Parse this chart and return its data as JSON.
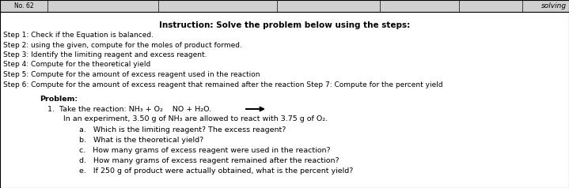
{
  "bg_color": "#e8e8e8",
  "box_color": "#ffffff",
  "border_color": "#000000",
  "title_instruction": "Instruction: Solve the problem below using the steps:",
  "steps": [
    "Step 1: Check if the Equation is balanced.",
    "Step 2: using the given, compute for the moles of product formed.",
    "Step 3: Identify the limiting reagent and excess reagent.",
    "Step 4: Compute for the theoretical yield",
    "Step 5: Compute for the amount of excess reagent used in the reaction",
    "Step 6: Compute for the amount of excess reagent that remained after the reaction Step 7: Compute for the percent yield"
  ],
  "problem_label": "Problem:",
  "problem_line1": "1.  Take the reaction: NH₃ + O₂    NO + H₂O.",
  "problem_line2": "In an experiment, 3.50 g of NH₃ are allowed to react with 3.75 g of O₂.",
  "questions": [
    "a.   Which is the limiting reagent? The excess reagent?",
    "b.   What is the theoretical yield?",
    "c.   How many grams of excess reagent were used in the reaction?",
    "d.   How many grams of excess reagent remained after the reaction?",
    "e.   If 250 g of product were actually obtained, what is the percent yield?"
  ],
  "header_right": "solving",
  "top_bar_label": "No. 62",
  "font_size_title": 7.5,
  "font_size_steps": 6.5,
  "font_size_problem": 6.8,
  "font_size_header": 6.5
}
